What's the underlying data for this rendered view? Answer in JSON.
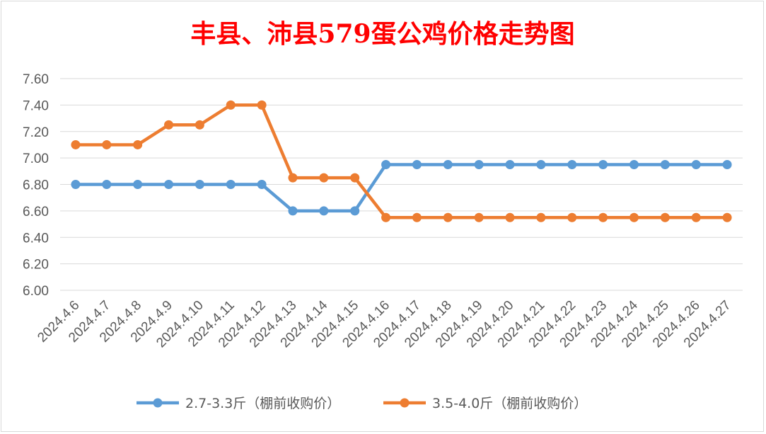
{
  "chart_data": {
    "type": "line",
    "title": "丰县、沛县579蛋公鸡价格走势图",
    "categories": [
      "2024.4.6",
      "2024.4.7",
      "2024.4.8",
      "2024.4.9",
      "2024.4.10",
      "2024.4.11",
      "2024.4.12",
      "2024.4.13",
      "2024.4.14",
      "2024.4.15",
      "2024.4.16",
      "2024.4.17",
      "2024.4.18",
      "2024.4.19",
      "2024.4.20",
      "2024.4.21",
      "2024.4.22",
      "2024.4.23",
      "2024.4.24",
      "2024.4.25",
      "2024.4.26",
      "2024.4.27"
    ],
    "ylim": [
      6.0,
      7.6
    ],
    "yticks": [
      "6.00",
      "6.20",
      "6.40",
      "6.60",
      "6.80",
      "7.00",
      "7.20",
      "7.40",
      "7.60"
    ],
    "grid": true,
    "legend_position": "bottom",
    "series": [
      {
        "name": "2.7-3.3斤（棚前收购价）",
        "color": "#5b9bd5",
        "values": [
          6.8,
          6.8,
          6.8,
          6.8,
          6.8,
          6.8,
          6.8,
          6.6,
          6.6,
          6.6,
          6.95,
          6.95,
          6.95,
          6.95,
          6.95,
          6.95,
          6.95,
          6.95,
          6.95,
          6.95,
          6.95,
          6.95
        ]
      },
      {
        "name": "3.5-4.0斤（棚前收购价）",
        "color": "#ed7d31",
        "values": [
          7.1,
          7.1,
          7.1,
          7.25,
          7.25,
          7.4,
          7.4,
          6.85,
          6.85,
          6.85,
          6.55,
          6.55,
          6.55,
          6.55,
          6.55,
          6.55,
          6.55,
          6.55,
          6.55,
          6.55,
          6.55,
          6.55
        ]
      }
    ],
    "title_color": "#ff0000"
  }
}
